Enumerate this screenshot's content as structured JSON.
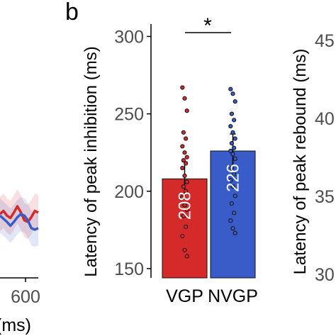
{
  "chart_data": [
    {
      "type": "line",
      "panel_label": "",
      "x_tick_labels": [
        "600"
      ],
      "x_axis_label": "(ms)",
      "series": [
        {
          "color": "#d42a2a",
          "y": [
            0.4,
            0.36,
            0.42,
            0.45,
            0.38,
            0.3,
            0.38,
            0.48,
            0.5,
            0.44,
            0.36,
            0.38
          ]
        },
        {
          "color": "#3a5cc8",
          "y": [
            0.42,
            0.46,
            0.5,
            0.55,
            0.5,
            0.44,
            0.4,
            0.42,
            0.48,
            0.58,
            0.6,
            0.58
          ]
        }
      ]
    },
    {
      "type": "bar",
      "panel_label": "b",
      "significance": "*",
      "categories": [
        "VGP",
        "NVGP"
      ],
      "values": [
        208,
        226
      ],
      "value_labels": [
        "208",
        "226"
      ],
      "errors": [
        11,
        11
      ],
      "colors": [
        "#d42a2a",
        "#3a5cc8"
      ],
      "ylabel": "Latency of peak inhibition (ms)",
      "ylim": [
        144,
        308
      ],
      "yticks": [
        150,
        200,
        250,
        300
      ],
      "points": [
        [
          267,
          260,
          252,
          238,
          234,
          229,
          225,
          222,
          220,
          218,
          215,
          210,
          206,
          203,
          200,
          196,
          191,
          188,
          184,
          177,
          171,
          162,
          158
        ],
        [
          266,
          263,
          258,
          250,
          246,
          242,
          238,
          234,
          231,
          228,
          226,
          224,
          221,
          215,
          211,
          207,
          203,
          197,
          192,
          186,
          181,
          176,
          173
        ]
      ]
    },
    {
      "type": "bar",
      "panel_label": "",
      "ylabel": "Latency of peak rebound (ms)",
      "yticks": [
        "45",
        "40",
        "35",
        "30"
      ]
    }
  ]
}
